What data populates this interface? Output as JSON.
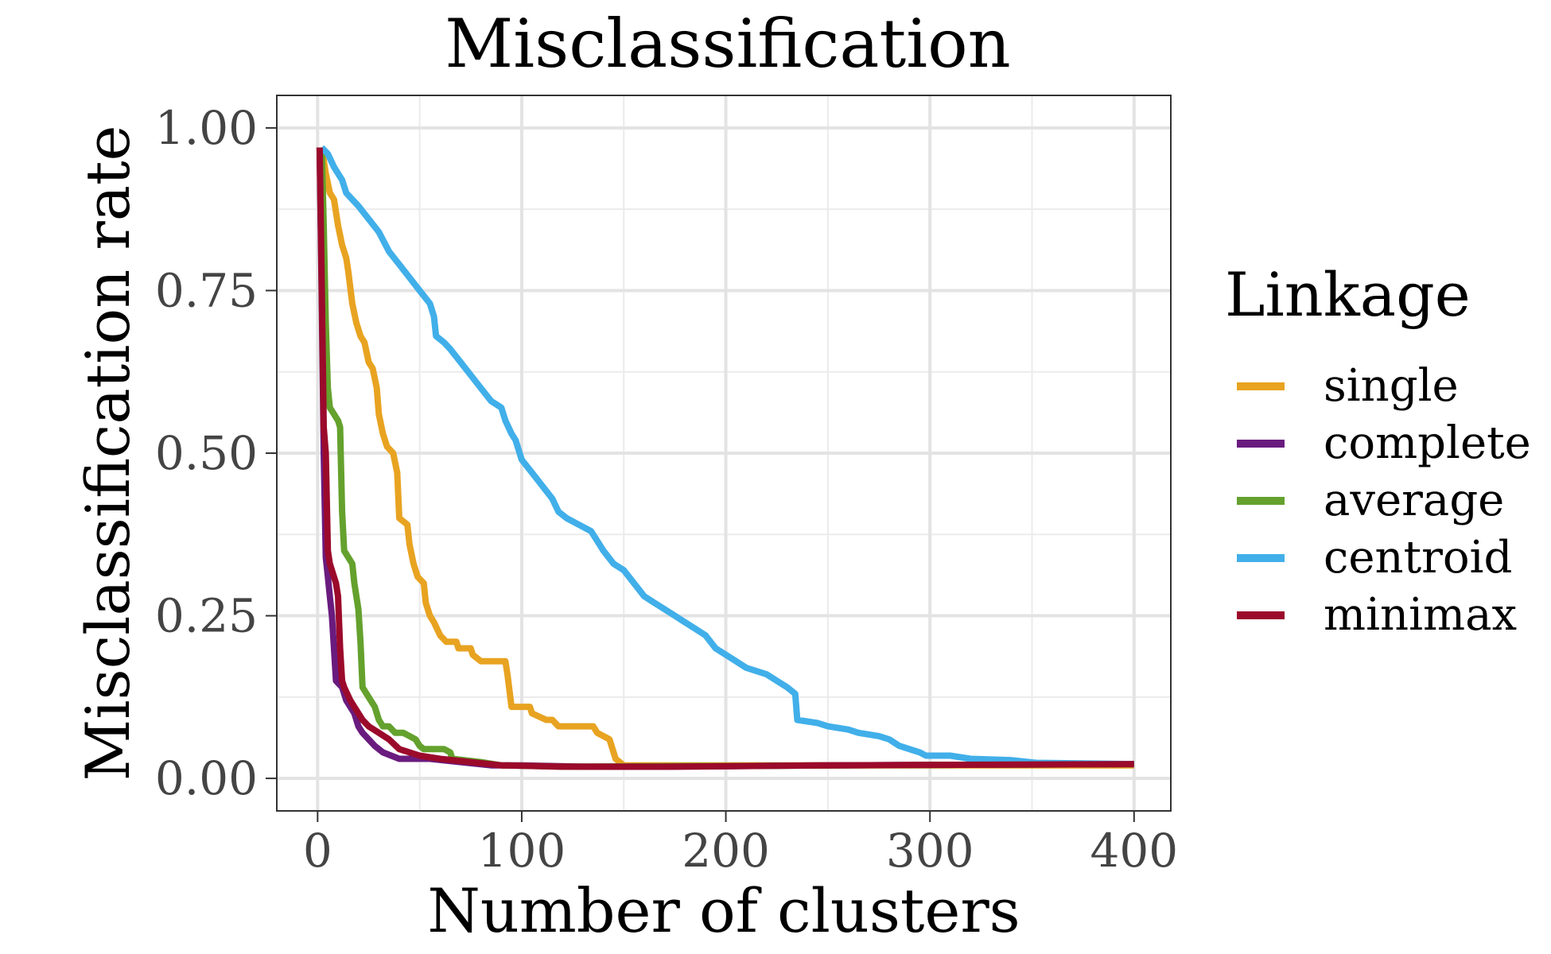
{
  "chart_data": {
    "type": "line",
    "title": "Misclassification",
    "xlabel": "Number of clusters",
    "ylabel": "Misclassification rate",
    "xlim": [
      -20,
      418
    ],
    "ylim": [
      -0.05,
      1.05
    ],
    "x_ticks": [
      0,
      100,
      200,
      300,
      400
    ],
    "x_tick_labels": [
      "0",
      "100",
      "200",
      "300",
      "400"
    ],
    "y_ticks": [
      0,
      0.25,
      0.5,
      0.75,
      1.0
    ],
    "y_tick_labels": [
      "0.00",
      "0.25",
      "0.50",
      "0.75",
      "1.00"
    ],
    "grid": true,
    "legend": {
      "title": "Linkage",
      "position": "right"
    },
    "series": [
      {
        "name": "single",
        "color": "#E8A321",
        "points": [
          [
            2,
            0.97
          ],
          [
            4,
            0.93
          ],
          [
            6,
            0.9
          ],
          [
            8,
            0.89
          ],
          [
            10,
            0.85
          ],
          [
            12,
            0.82
          ],
          [
            14,
            0.8
          ],
          [
            15,
            0.78
          ],
          [
            17,
            0.73
          ],
          [
            19,
            0.7
          ],
          [
            21,
            0.68
          ],
          [
            23,
            0.67
          ],
          [
            25,
            0.64
          ],
          [
            27,
            0.63
          ],
          [
            29,
            0.6
          ],
          [
            30,
            0.56
          ],
          [
            32,
            0.53
          ],
          [
            34,
            0.51
          ],
          [
            37,
            0.5
          ],
          [
            39,
            0.47
          ],
          [
            40,
            0.4
          ],
          [
            44,
            0.39
          ],
          [
            45,
            0.36
          ],
          [
            47,
            0.33
          ],
          [
            49,
            0.31
          ],
          [
            52,
            0.3
          ],
          [
            53,
            0.27
          ],
          [
            55,
            0.25
          ],
          [
            57,
            0.24
          ],
          [
            60,
            0.22
          ],
          [
            63,
            0.21
          ],
          [
            68,
            0.21
          ],
          [
            69,
            0.2
          ],
          [
            75,
            0.2
          ],
          [
            76,
            0.19
          ],
          [
            80,
            0.18
          ],
          [
            92,
            0.18
          ],
          [
            93,
            0.16
          ],
          [
            95,
            0.11
          ],
          [
            104,
            0.11
          ],
          [
            105,
            0.1
          ],
          [
            112,
            0.09
          ],
          [
            115,
            0.09
          ],
          [
            118,
            0.08
          ],
          [
            135,
            0.08
          ],
          [
            137,
            0.07
          ],
          [
            143,
            0.06
          ],
          [
            146,
            0.03
          ],
          [
            150,
            0.02
          ],
          [
            165,
            0.02
          ],
          [
            400,
            0.02
          ]
        ]
      },
      {
        "name": "complete",
        "color": "#6A1B7E",
        "points": [
          [
            1,
            0.97
          ],
          [
            2,
            0.74
          ],
          [
            3,
            0.5
          ],
          [
            4,
            0.34
          ],
          [
            5,
            0.31
          ],
          [
            6,
            0.28
          ],
          [
            7,
            0.25
          ],
          [
            8,
            0.2
          ],
          [
            9,
            0.15
          ],
          [
            12,
            0.14
          ],
          [
            14,
            0.12
          ],
          [
            16,
            0.11
          ],
          [
            18,
            0.1
          ],
          [
            20,
            0.08
          ],
          [
            22,
            0.07
          ],
          [
            25,
            0.06
          ],
          [
            28,
            0.05
          ],
          [
            32,
            0.04
          ],
          [
            40,
            0.03
          ],
          [
            55,
            0.03
          ],
          [
            70,
            0.025
          ],
          [
            85,
            0.02
          ],
          [
            100,
            0.02
          ],
          [
            130,
            0.018
          ],
          [
            170,
            0.018
          ],
          [
            250,
            0.02
          ],
          [
            400,
            0.022
          ]
        ]
      },
      {
        "name": "average",
        "color": "#64A12D",
        "points": [
          [
            2,
            0.97
          ],
          [
            3,
            0.85
          ],
          [
            4,
            0.7
          ],
          [
            5,
            0.6
          ],
          [
            6,
            0.57
          ],
          [
            8,
            0.56
          ],
          [
            10,
            0.55
          ],
          [
            11,
            0.54
          ],
          [
            12,
            0.41
          ],
          [
            13,
            0.35
          ],
          [
            15,
            0.34
          ],
          [
            17,
            0.33
          ],
          [
            18,
            0.3
          ],
          [
            20,
            0.26
          ],
          [
            21,
            0.21
          ],
          [
            22,
            0.14
          ],
          [
            24,
            0.13
          ],
          [
            26,
            0.12
          ],
          [
            28,
            0.11
          ],
          [
            30,
            0.09
          ],
          [
            32,
            0.08
          ],
          [
            35,
            0.08
          ],
          [
            38,
            0.07
          ],
          [
            42,
            0.07
          ],
          [
            48,
            0.06
          ],
          [
            50,
            0.05
          ],
          [
            52,
            0.045
          ],
          [
            62,
            0.045
          ],
          [
            65,
            0.04
          ],
          [
            66,
            0.03
          ],
          [
            80,
            0.025
          ],
          [
            90,
            0.02
          ],
          [
            120,
            0.018
          ],
          [
            400,
            0.022
          ]
        ]
      },
      {
        "name": "centroid",
        "color": "#41AFE9",
        "points": [
          [
            2,
            0.97
          ],
          [
            5,
            0.96
          ],
          [
            8,
            0.94
          ],
          [
            10,
            0.93
          ],
          [
            12,
            0.92
          ],
          [
            14,
            0.9
          ],
          [
            17,
            0.89
          ],
          [
            20,
            0.88
          ],
          [
            25,
            0.86
          ],
          [
            30,
            0.84
          ],
          [
            35,
            0.81
          ],
          [
            40,
            0.79
          ],
          [
            45,
            0.77
          ],
          [
            50,
            0.75
          ],
          [
            55,
            0.73
          ],
          [
            57,
            0.71
          ],
          [
            58,
            0.68
          ],
          [
            62,
            0.67
          ],
          [
            65,
            0.66
          ],
          [
            70,
            0.64
          ],
          [
            75,
            0.62
          ],
          [
            80,
            0.6
          ],
          [
            85,
            0.58
          ],
          [
            90,
            0.57
          ],
          [
            92,
            0.55
          ],
          [
            95,
            0.53
          ],
          [
            97,
            0.52
          ],
          [
            100,
            0.49
          ],
          [
            105,
            0.47
          ],
          [
            110,
            0.45
          ],
          [
            115,
            0.43
          ],
          [
            118,
            0.41
          ],
          [
            122,
            0.4
          ],
          [
            128,
            0.39
          ],
          [
            134,
            0.38
          ],
          [
            138,
            0.36
          ],
          [
            140,
            0.35
          ],
          [
            145,
            0.33
          ],
          [
            150,
            0.32
          ],
          [
            155,
            0.3
          ],
          [
            160,
            0.28
          ],
          [
            165,
            0.27
          ],
          [
            170,
            0.26
          ],
          [
            175,
            0.25
          ],
          [
            180,
            0.24
          ],
          [
            185,
            0.23
          ],
          [
            190,
            0.22
          ],
          [
            195,
            0.2
          ],
          [
            200,
            0.19
          ],
          [
            205,
            0.18
          ],
          [
            210,
            0.17
          ],
          [
            220,
            0.16
          ],
          [
            225,
            0.15
          ],
          [
            230,
            0.14
          ],
          [
            234,
            0.13
          ],
          [
            235,
            0.09
          ],
          [
            245,
            0.085
          ],
          [
            250,
            0.08
          ],
          [
            260,
            0.075
          ],
          [
            265,
            0.07
          ],
          [
            275,
            0.065
          ],
          [
            280,
            0.06
          ],
          [
            285,
            0.05
          ],
          [
            290,
            0.045
          ],
          [
            295,
            0.04
          ],
          [
            298,
            0.035
          ],
          [
            310,
            0.035
          ],
          [
            320,
            0.03
          ],
          [
            340,
            0.028
          ],
          [
            352,
            0.024
          ],
          [
            400,
            0.022
          ]
        ]
      },
      {
        "name": "minimax",
        "color": "#9B0A2B",
        "points": [
          [
            1,
            0.97
          ],
          [
            2,
            0.76
          ],
          [
            3,
            0.54
          ],
          [
            4,
            0.5
          ],
          [
            5,
            0.35
          ],
          [
            6,
            0.33
          ],
          [
            7,
            0.32
          ],
          [
            9,
            0.3
          ],
          [
            10,
            0.28
          ],
          [
            11,
            0.2
          ],
          [
            12,
            0.15
          ],
          [
            13,
            0.14
          ],
          [
            16,
            0.12
          ],
          [
            18,
            0.11
          ],
          [
            20,
            0.1
          ],
          [
            22,
            0.09
          ],
          [
            25,
            0.08
          ],
          [
            30,
            0.07
          ],
          [
            35,
            0.06
          ],
          [
            40,
            0.045
          ],
          [
            50,
            0.035
          ],
          [
            60,
            0.03
          ],
          [
            75,
            0.025
          ],
          [
            90,
            0.02
          ],
          [
            120,
            0.018
          ],
          [
            170,
            0.018
          ],
          [
            250,
            0.02
          ],
          [
            400,
            0.022
          ]
        ]
      }
    ]
  }
}
